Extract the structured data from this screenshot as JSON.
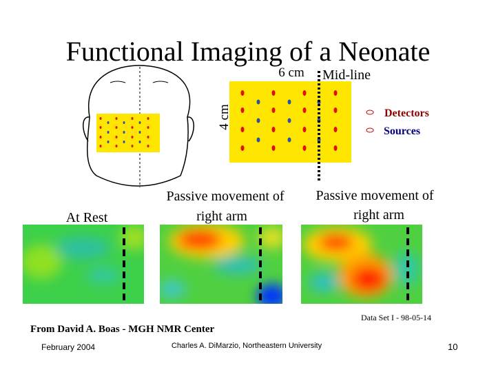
{
  "title": "Functional Imaging of a Neonate",
  "probe": {
    "width_label": "6 cm",
    "height_label": "4 cm",
    "midline_label": "Mid-line"
  },
  "legend": {
    "detectors": "Detectors",
    "sources": "Sources"
  },
  "panels": [
    {
      "label_lines": [
        "At Rest"
      ]
    },
    {
      "label_lines": [
        "Passive movement of",
        "right arm"
      ]
    },
    {
      "label_lines": [
        "Passive movement of",
        "right arm"
      ]
    }
  ],
  "dataset": "Data Set I - 98-05-14",
  "credit": "From David A. Boas - MGH NMR Center",
  "footer": {
    "date": "February 2004",
    "author": "Charles A. DiMarzio, Northeastern University",
    "page": "10"
  }
}
